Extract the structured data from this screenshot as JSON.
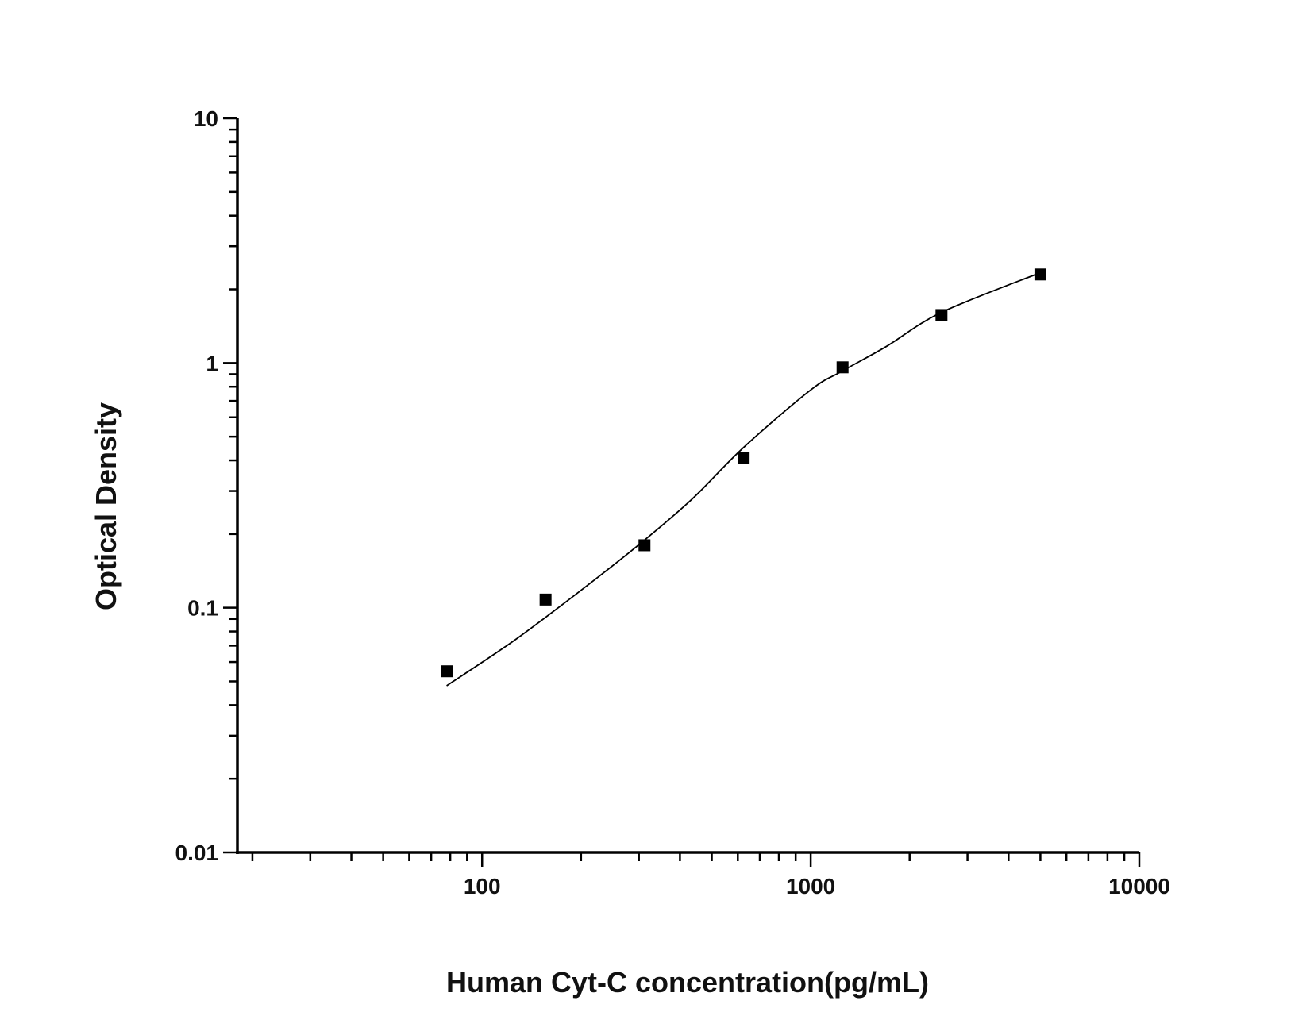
{
  "chart_data": {
    "type": "scatter",
    "title": "",
    "xlabel": "Human Cyt-C concentration(pg/mL)",
    "ylabel": "Optical Density",
    "x_scale": "log",
    "y_scale": "log",
    "xlim": [
      18,
      10000
    ],
    "ylim": [
      0.01,
      10
    ],
    "x_ticks": [
      {
        "value": 100,
        "label": "100"
      },
      {
        "value": 1000,
        "label": "1000"
      },
      {
        "value": 10000,
        "label": "10000"
      }
    ],
    "y_ticks": [
      {
        "value": 0.01,
        "label": "0.01"
      },
      {
        "value": 0.1,
        "label": "0.1"
      },
      {
        "value": 1,
        "label": "1"
      },
      {
        "value": 10,
        "label": "10"
      }
    ],
    "grid": false,
    "points": {
      "x": [
        78,
        156,
        312,
        625,
        1250,
        2500,
        5000
      ],
      "y": [
        0.055,
        0.108,
        0.18,
        0.41,
        0.96,
        1.57,
        2.3
      ],
      "marker": "square",
      "color": "#000000"
    },
    "fit_curve": {
      "x": [
        78,
        127,
        215,
        312,
        438,
        625,
        1000,
        1244,
        1702,
        2500,
        5000
      ],
      "y": [
        0.048,
        0.0745,
        0.127,
        0.189,
        0.28,
        0.452,
        0.776,
        0.925,
        1.17,
        1.61,
        2.34
      ],
      "color": "#000000"
    }
  }
}
